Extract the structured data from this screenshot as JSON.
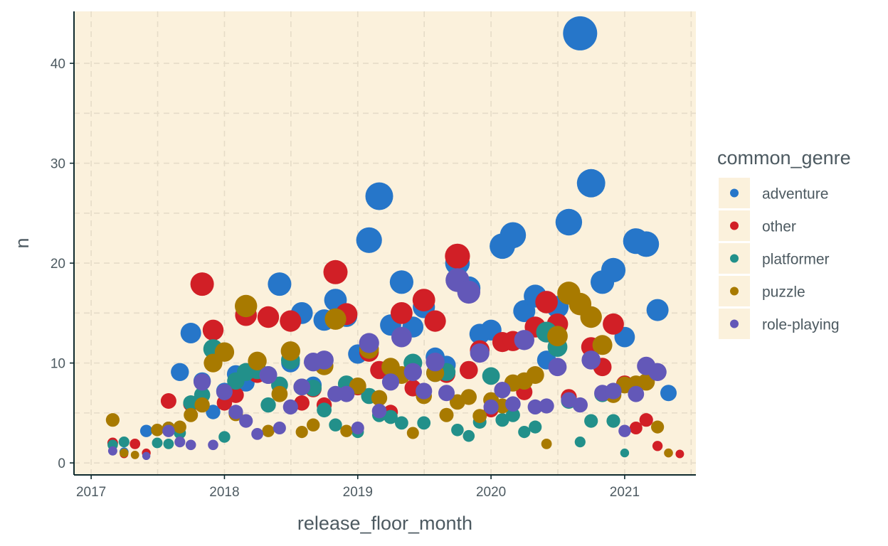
{
  "chart_data": {
    "type": "scatter",
    "xlabel": "release_floor_month",
    "ylabel": "n",
    "x_ticks": [
      "2017",
      "2018",
      "2019",
      "2020",
      "2021"
    ],
    "y_ticks": [
      "0",
      "10",
      "20",
      "30",
      "40"
    ],
    "xlim": [
      "2016-11-15",
      "2021-07-15"
    ],
    "ylim": [
      -1.2,
      45.2
    ],
    "grid": true,
    "background": "#fbf1dc",
    "point_size": "proportional to n",
    "legend": {
      "title": "common_genre",
      "placement": "right",
      "entries": [
        "adventure",
        "other",
        "platformer",
        "puzzle",
        "role-playing"
      ]
    },
    "colors": {
      "adventure": "#2676c9",
      "other": "#d11f26",
      "platformer": "#22908a",
      "puzzle": "#a87a00",
      "role-playing": "#6358b8"
    },
    "series": [
      {
        "name": "adventure",
        "points": [
          [
            "2017-04-01",
            1.1
          ],
          [
            "2017-06-01",
            3.2
          ],
          [
            "2017-08-01",
            3.5
          ],
          [
            "2017-09-01",
            9.1
          ],
          [
            "2017-10-01",
            13.0
          ],
          [
            "2017-11-01",
            8.2
          ],
          [
            "2017-12-01",
            5.1
          ],
          [
            "2018-01-01",
            7.2
          ],
          [
            "2018-02-01",
            8.9
          ],
          [
            "2018-03-01",
            8.0
          ],
          [
            "2018-05-01",
            8.8
          ],
          [
            "2018-06-01",
            17.9
          ],
          [
            "2018-07-01",
            10.0
          ],
          [
            "2018-08-01",
            15.0
          ],
          [
            "2018-09-01",
            7.8
          ],
          [
            "2018-10-01",
            14.3
          ],
          [
            "2018-11-01",
            16.3
          ],
          [
            "2018-12-01",
            14.7
          ],
          [
            "2019-01-01",
            10.9
          ],
          [
            "2019-02-01",
            22.3
          ],
          [
            "2019-03-01",
            26.7
          ],
          [
            "2019-04-01",
            13.8
          ],
          [
            "2019-05-01",
            18.1
          ],
          [
            "2019-06-01",
            13.6
          ],
          [
            "2019-07-01",
            15.6
          ],
          [
            "2019-08-01",
            10.6
          ],
          [
            "2019-09-01",
            9.8
          ],
          [
            "2019-10-01",
            20.0
          ],
          [
            "2019-11-01",
            17.5
          ],
          [
            "2019-12-01",
            12.9
          ],
          [
            "2020-01-01",
            13.3
          ],
          [
            "2020-02-01",
            21.7
          ],
          [
            "2020-03-01",
            22.8
          ],
          [
            "2020-04-01",
            15.2
          ],
          [
            "2020-05-01",
            16.7
          ],
          [
            "2020-06-01",
            10.3
          ],
          [
            "2020-07-01",
            15.6
          ],
          [
            "2020-08-01",
            24.1
          ],
          [
            "2020-09-01",
            43.0
          ],
          [
            "2020-10-01",
            28.0
          ],
          [
            "2020-11-01",
            18.1
          ],
          [
            "2020-12-01",
            19.3
          ],
          [
            "2021-01-01",
            12.6
          ],
          [
            "2021-02-01",
            22.2
          ],
          [
            "2021-03-01",
            21.9
          ],
          [
            "2021-04-01",
            15.3
          ],
          [
            "2021-05-01",
            7.0
          ]
        ]
      },
      {
        "name": "other",
        "points": [
          [
            "2017-03-01",
            2.0
          ],
          [
            "2017-04-01",
            0.9
          ],
          [
            "2017-05-01",
            1.9
          ],
          [
            "2017-06-01",
            1.0
          ],
          [
            "2017-08-01",
            6.2
          ],
          [
            "2017-10-01",
            5.9
          ],
          [
            "2017-11-01",
            17.9
          ],
          [
            "2017-12-01",
            13.3
          ],
          [
            "2018-01-01",
            6.0
          ],
          [
            "2018-02-01",
            6.8
          ],
          [
            "2018-03-01",
            14.8
          ],
          [
            "2018-04-01",
            8.9
          ],
          [
            "2018-05-01",
            14.6
          ],
          [
            "2018-07-01",
            14.2
          ],
          [
            "2018-08-01",
            6.0
          ],
          [
            "2018-09-01",
            7.4
          ],
          [
            "2018-10-01",
            5.8
          ],
          [
            "2018-11-01",
            19.1
          ],
          [
            "2018-12-01",
            14.9
          ],
          [
            "2019-01-01",
            7.6
          ],
          [
            "2019-02-01",
            11.1
          ],
          [
            "2019-03-01",
            9.3
          ],
          [
            "2019-04-01",
            5.1
          ],
          [
            "2019-05-01",
            15.0
          ],
          [
            "2019-06-01",
            7.5
          ],
          [
            "2019-07-01",
            16.3
          ],
          [
            "2019-08-01",
            14.2
          ],
          [
            "2019-09-01",
            8.9
          ],
          [
            "2019-10-01",
            20.7
          ],
          [
            "2019-11-01",
            9.3
          ],
          [
            "2019-12-01",
            11.3
          ],
          [
            "2020-01-01",
            5.3
          ],
          [
            "2020-02-01",
            12.1
          ],
          [
            "2020-03-01",
            12.2
          ],
          [
            "2020-04-01",
            7.1
          ],
          [
            "2020-05-01",
            13.6
          ],
          [
            "2020-06-01",
            16.1
          ],
          [
            "2020-07-01",
            13.9
          ],
          [
            "2020-08-01",
            6.6
          ],
          [
            "2020-10-01",
            11.6
          ],
          [
            "2020-11-01",
            9.6
          ],
          [
            "2020-12-01",
            13.9
          ],
          [
            "2021-01-01",
            7.9
          ],
          [
            "2021-02-01",
            3.5
          ],
          [
            "2021-03-01",
            4.3
          ],
          [
            "2021-04-01",
            1.7
          ],
          [
            "2021-05-01",
            1.0
          ],
          [
            "2021-06-01",
            0.9
          ]
        ]
      },
      {
        "name": "platformer",
        "points": [
          [
            "2017-03-01",
            1.8
          ],
          [
            "2017-04-01",
            2.1
          ],
          [
            "2017-07-01",
            2.0
          ],
          [
            "2017-08-01",
            1.9
          ],
          [
            "2017-09-01",
            3.0
          ],
          [
            "2017-10-01",
            6.0
          ],
          [
            "2017-11-01",
            6.8
          ],
          [
            "2017-12-01",
            11.4
          ],
          [
            "2018-01-01",
            2.6
          ],
          [
            "2018-02-01",
            8.2
          ],
          [
            "2018-03-01",
            9.1
          ],
          [
            "2018-04-01",
            9.3
          ],
          [
            "2018-05-01",
            5.8
          ],
          [
            "2018-06-01",
            7.8
          ],
          [
            "2018-07-01",
            10.3
          ],
          [
            "2018-08-01",
            7.6
          ],
          [
            "2018-09-01",
            7.5
          ],
          [
            "2018-10-01",
            5.3
          ],
          [
            "2018-11-01",
            3.8
          ],
          [
            "2018-12-01",
            7.9
          ],
          [
            "2019-01-01",
            3.1
          ],
          [
            "2019-02-01",
            6.7
          ],
          [
            "2019-03-01",
            4.8
          ],
          [
            "2019-04-01",
            4.6
          ],
          [
            "2019-05-01",
            4.0
          ],
          [
            "2019-06-01",
            10.0
          ],
          [
            "2019-07-01",
            4.0
          ],
          [
            "2019-08-01",
            9.0
          ],
          [
            "2019-09-01",
            9.1
          ],
          [
            "2019-10-01",
            3.3
          ],
          [
            "2019-11-01",
            2.7
          ],
          [
            "2019-12-01",
            4.1
          ],
          [
            "2020-01-01",
            8.7
          ],
          [
            "2020-02-01",
            4.3
          ],
          [
            "2020-03-01",
            4.8
          ],
          [
            "2020-04-01",
            3.1
          ],
          [
            "2020-05-01",
            3.6
          ],
          [
            "2020-06-01",
            13.1
          ],
          [
            "2020-07-01",
            11.6
          ],
          [
            "2020-08-01",
            6.2
          ],
          [
            "2020-09-01",
            2.1
          ],
          [
            "2020-10-01",
            4.2
          ],
          [
            "2020-11-01",
            6.9
          ],
          [
            "2020-12-01",
            4.2
          ],
          [
            "2021-01-01",
            1.0
          ]
        ]
      },
      {
        "name": "puzzle",
        "points": [
          [
            "2017-03-01",
            4.3
          ],
          [
            "2017-04-01",
            1.0
          ],
          [
            "2017-05-01",
            0.8
          ],
          [
            "2017-07-01",
            3.3
          ],
          [
            "2017-08-01",
            3.5
          ],
          [
            "2017-09-01",
            3.6
          ],
          [
            "2017-10-01",
            4.8
          ],
          [
            "2017-11-01",
            5.8
          ],
          [
            "2017-12-01",
            10.0
          ],
          [
            "2018-01-01",
            11.1
          ],
          [
            "2018-02-01",
            4.9
          ],
          [
            "2018-03-01",
            15.7
          ],
          [
            "2018-04-01",
            10.2
          ],
          [
            "2018-05-01",
            3.2
          ],
          [
            "2018-06-01",
            6.9
          ],
          [
            "2018-07-01",
            11.2
          ],
          [
            "2018-08-01",
            3.1
          ],
          [
            "2018-09-01",
            3.8
          ],
          [
            "2018-10-01",
            9.7
          ],
          [
            "2018-11-01",
            14.4
          ],
          [
            "2018-12-01",
            3.2
          ],
          [
            "2019-01-01",
            7.7
          ],
          [
            "2019-02-01",
            11.4
          ],
          [
            "2019-03-01",
            6.5
          ],
          [
            "2019-04-01",
            9.6
          ],
          [
            "2019-05-01",
            8.8
          ],
          [
            "2019-06-01",
            3.0
          ],
          [
            "2019-07-01",
            6.7
          ],
          [
            "2019-08-01",
            9.0
          ],
          [
            "2019-09-01",
            4.8
          ],
          [
            "2019-10-01",
            6.1
          ],
          [
            "2019-11-01",
            6.6
          ],
          [
            "2019-12-01",
            4.7
          ],
          [
            "2020-01-01",
            6.3
          ],
          [
            "2020-02-01",
            5.7
          ],
          [
            "2020-03-01",
            8.0
          ],
          [
            "2020-04-01",
            8.2
          ],
          [
            "2020-05-01",
            8.8
          ],
          [
            "2020-06-01",
            1.9
          ],
          [
            "2020-07-01",
            12.7
          ],
          [
            "2020-08-01",
            17.0
          ],
          [
            "2020-09-01",
            15.9
          ],
          [
            "2020-10-01",
            14.6
          ],
          [
            "2020-11-01",
            11.8
          ],
          [
            "2020-12-01",
            6.8
          ],
          [
            "2021-01-01",
            7.8
          ],
          [
            "2021-02-01",
            7.9
          ],
          [
            "2021-03-01",
            8.1
          ],
          [
            "2021-04-01",
            3.6
          ],
          [
            "2021-05-01",
            1.0
          ]
        ]
      },
      {
        "name": "role-playing",
        "points": [
          [
            "2017-03-01",
            1.2
          ],
          [
            "2017-06-01",
            0.7
          ],
          [
            "2017-08-01",
            3.2
          ],
          [
            "2017-09-01",
            2.1
          ],
          [
            "2017-10-01",
            1.8
          ],
          [
            "2017-11-01",
            8.1
          ],
          [
            "2017-12-01",
            1.8
          ],
          [
            "2018-01-01",
            7.1
          ],
          [
            "2018-02-01",
            5.1
          ],
          [
            "2018-03-01",
            4.2
          ],
          [
            "2018-04-01",
            2.9
          ],
          [
            "2018-05-01",
            8.8
          ],
          [
            "2018-06-01",
            3.5
          ],
          [
            "2018-07-01",
            5.6
          ],
          [
            "2018-08-01",
            7.6
          ],
          [
            "2018-09-01",
            10.1
          ],
          [
            "2018-10-01",
            10.3
          ],
          [
            "2018-11-01",
            6.9
          ],
          [
            "2018-12-01",
            6.9
          ],
          [
            "2019-01-01",
            3.5
          ],
          [
            "2019-02-01",
            12.0
          ],
          [
            "2019-03-01",
            5.2
          ],
          [
            "2019-04-01",
            8.1
          ],
          [
            "2019-05-01",
            12.6
          ],
          [
            "2019-06-01",
            9.1
          ],
          [
            "2019-07-01",
            7.2
          ],
          [
            "2019-08-01",
            10.1
          ],
          [
            "2019-09-01",
            7.0
          ],
          [
            "2019-10-01",
            18.3
          ],
          [
            "2019-11-01",
            17.1
          ],
          [
            "2019-12-01",
            11.0
          ],
          [
            "2020-01-01",
            5.6
          ],
          [
            "2020-02-01",
            7.3
          ],
          [
            "2020-03-01",
            5.9
          ],
          [
            "2020-04-01",
            12.3
          ],
          [
            "2020-05-01",
            5.6
          ],
          [
            "2020-06-01",
            5.7
          ],
          [
            "2020-07-01",
            9.6
          ],
          [
            "2020-08-01",
            6.3
          ],
          [
            "2020-09-01",
            5.8
          ],
          [
            "2020-10-01",
            10.3
          ],
          [
            "2020-11-01",
            7.0
          ],
          [
            "2020-12-01",
            7.2
          ],
          [
            "2021-01-01",
            3.2
          ],
          [
            "2021-02-01",
            6.9
          ],
          [
            "2021-03-01",
            9.7
          ],
          [
            "2021-04-01",
            9.1
          ]
        ]
      }
    ]
  }
}
